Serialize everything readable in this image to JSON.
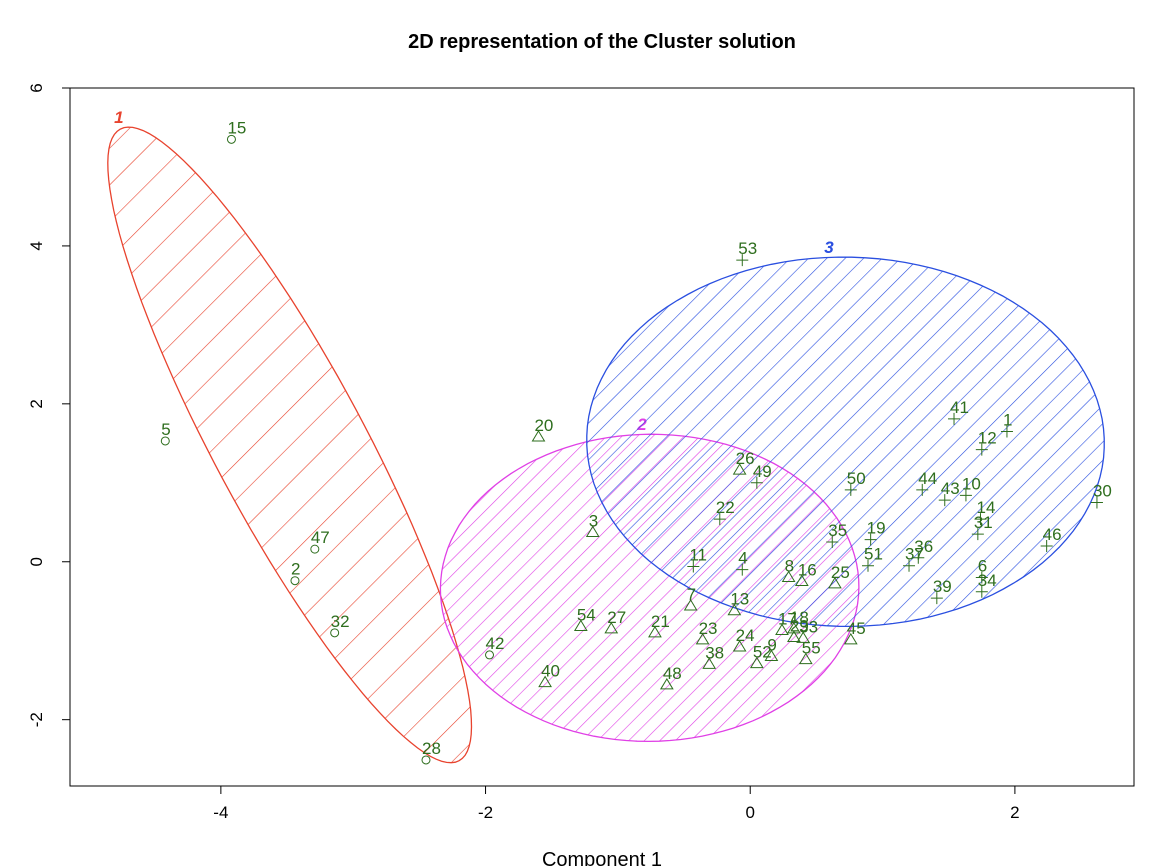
{
  "chart_data": {
    "type": "cluster",
    "title": "2D representation of the Cluster solution",
    "x_label": "Component 1",
    "xlim": [
      -5.14,
      2.9
    ],
    "ylim": [
      -2.84,
      6
    ],
    "xticks": [
      -4,
      -2,
      0,
      2
    ],
    "yticks": [
      -2,
      0,
      2,
      4,
      6
    ],
    "label_color": "#2e6e1e",
    "series": [
      {
        "name": "1",
        "color": "#e8432e",
        "marker": "circle",
        "labels": [
          "15",
          "5",
          "47",
          "2",
          "32",
          "42",
          "28"
        ],
        "x": [
          -3.92,
          -4.42,
          -3.29,
          -3.44,
          -3.14,
          -1.97,
          -2.45
        ],
        "values": [
          5.35,
          1.53,
          0.16,
          -0.24,
          -0.9,
          -1.18,
          -2.51
        ],
        "ellipse": {
          "center": [
            -3.48,
            1.48
          ],
          "a": [
            -1.28,
            4.0
          ],
          "b": [
            0.5,
            0.45
          ]
        },
        "hatch": 26
      },
      {
        "name": "2",
        "color": "#e040e6",
        "marker": "triangle",
        "labels": [
          "20",
          "3",
          "26",
          "7",
          "13",
          "8",
          "16",
          "25",
          "54",
          "27",
          "21",
          "23",
          "24",
          "38",
          "48",
          "52",
          "9",
          "17",
          "18",
          "29",
          "33",
          "45",
          "55",
          "40"
        ],
        "x": [
          -1.6,
          -1.19,
          -0.08,
          -0.45,
          -0.12,
          0.29,
          0.39,
          0.64,
          -1.28,
          -1.05,
          -0.72,
          -0.36,
          -0.08,
          -0.31,
          -0.63,
          0.05,
          0.16,
          0.24,
          0.33,
          0.33,
          0.4,
          0.76,
          0.42,
          -1.55
        ],
        "values": [
          1.58,
          0.37,
          1.16,
          -0.56,
          -0.62,
          -0.2,
          -0.25,
          -0.28,
          -0.82,
          -0.85,
          -0.9,
          -0.99,
          -1.08,
          -1.3,
          -1.56,
          -1.29,
          -1.2,
          -0.87,
          -0.85,
          -0.96,
          -0.97,
          -0.99,
          -1.24,
          -1.53
        ],
        "ellipse": {
          "center": [
            -0.76,
            -0.33
          ],
          "a": [
            1.5,
            -0.6
          ],
          "b": [
            0.5,
            1.85
          ]
        },
        "hatch": 11
      },
      {
        "name": "3",
        "color": "#2a4fe0",
        "marker": "plus",
        "labels": [
          "53",
          "49",
          "22",
          "11",
          "4",
          "41",
          "1",
          "12",
          "50",
          "44",
          "43",
          "10",
          "14",
          "31",
          "30",
          "46",
          "35",
          "19",
          "51",
          "37",
          "36",
          "6",
          "34",
          "39"
        ],
        "x": [
          -0.06,
          0.05,
          -0.23,
          -0.43,
          -0.06,
          1.54,
          1.94,
          1.75,
          0.76,
          1.3,
          1.47,
          1.63,
          1.74,
          1.72,
          2.62,
          2.24,
          0.62,
          0.91,
          0.89,
          1.2,
          1.27,
          1.75,
          1.75,
          1.41
        ],
        "values": [
          3.82,
          1.0,
          0.54,
          -0.06,
          -0.1,
          1.81,
          1.65,
          1.42,
          0.91,
          0.91,
          0.78,
          0.84,
          0.54,
          0.35,
          0.75,
          0.2,
          0.25,
          0.28,
          -0.05,
          -0.05,
          0.05,
          -0.2,
          -0.38,
          -0.46
        ],
        "ellipse": {
          "center": [
            0.72,
            1.52
          ],
          "a": [
            1.95,
            -0.2
          ],
          "b": [
            0.15,
            2.33
          ]
        },
        "hatch": 13
      }
    ]
  }
}
